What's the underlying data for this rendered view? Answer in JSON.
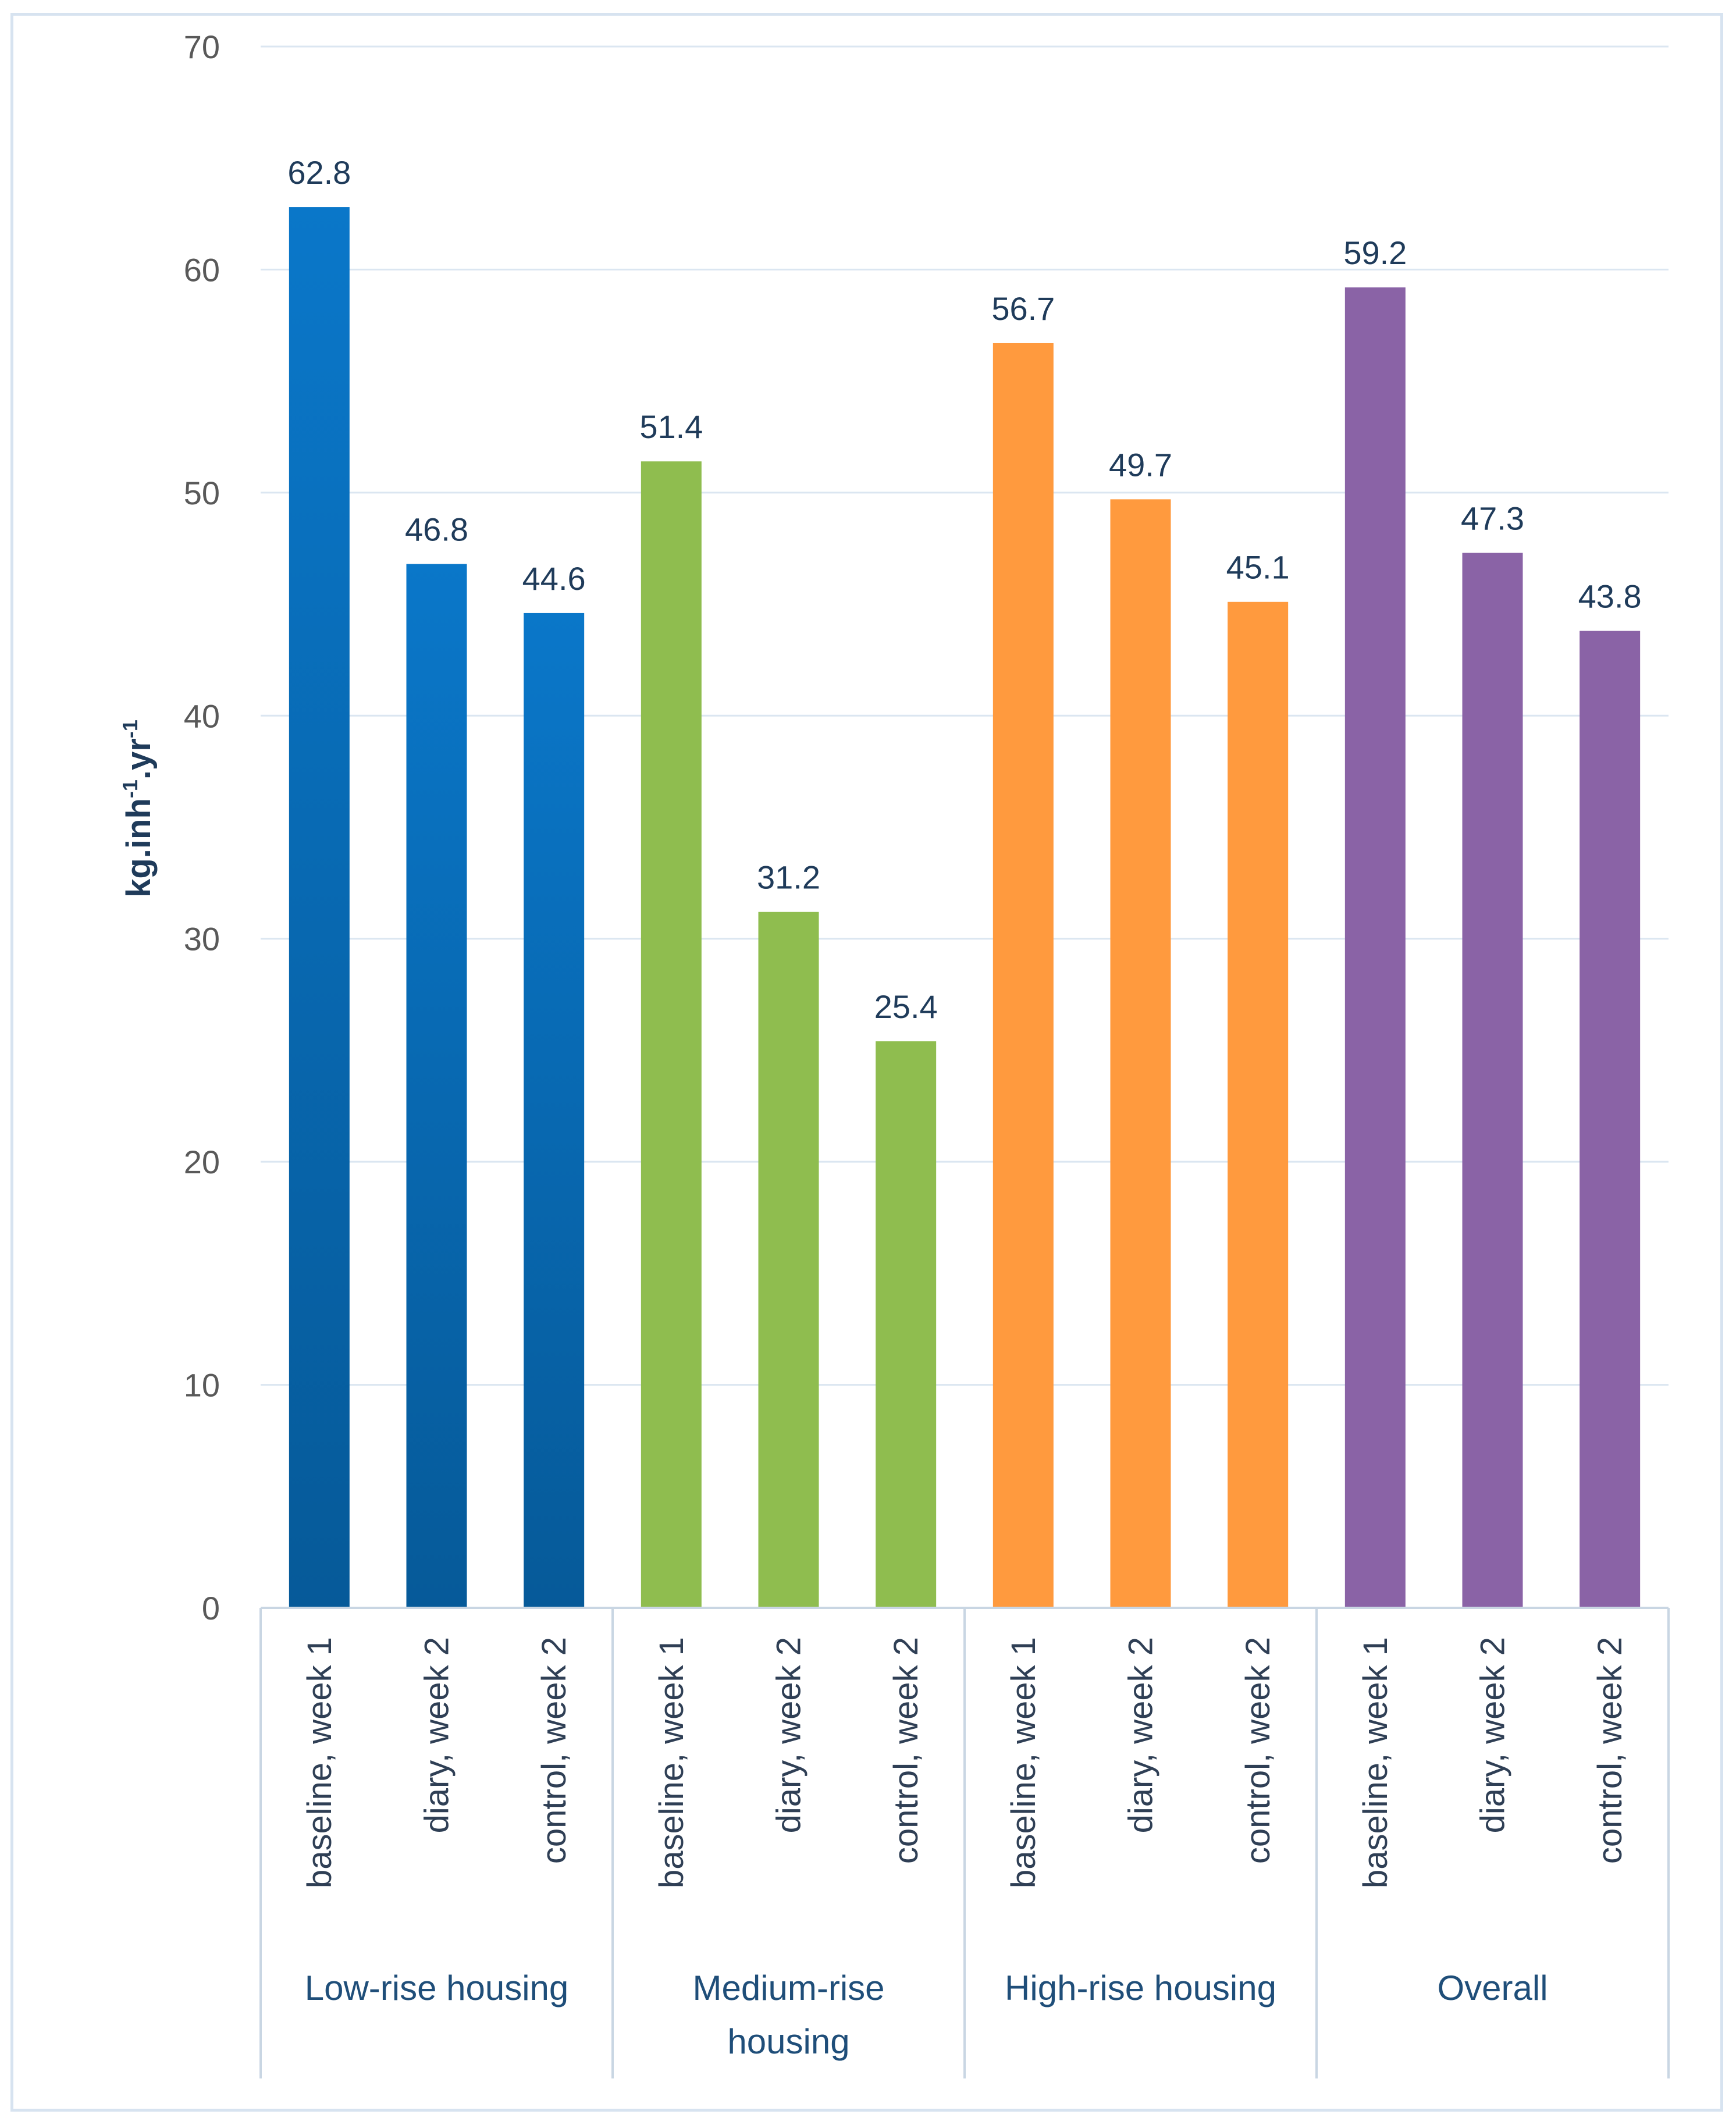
{
  "chart_data": {
    "type": "bar",
    "ylabel": "kg.inh",
    "ylabel_sup1": "-1",
    "ylabel_mid": ".yr",
    "ylabel_sup2": "-1",
    "ylim": [
      0,
      70
    ],
    "yticks": [
      "0",
      "10",
      "20",
      "30",
      "40",
      "50",
      "60",
      "70"
    ],
    "grid": true,
    "groups": [
      {
        "name": "Low-rise housing",
        "name_lines": [
          "Low-rise housing"
        ],
        "color": "#0a77c9",
        "color_dark": "#065a99",
        "gradient": true,
        "categories": [
          "baseline, week 1",
          "diary, week 2",
          "control, week 2"
        ],
        "values": [
          62.8,
          46.8,
          44.6
        ]
      },
      {
        "name": "Medium-rise housing",
        "name_lines": [
          "Medium-rise",
          "housing"
        ],
        "color": "#8fbd4f",
        "gradient": false,
        "categories": [
          "baseline, week 1",
          "diary, week 2",
          "control, week 2"
        ],
        "values": [
          51.4,
          31.2,
          25.4
        ]
      },
      {
        "name": "High-rise housing",
        "name_lines": [
          "High-rise housing"
        ],
        "color": "#ff9a3e",
        "gradient": false,
        "categories": [
          "baseline, week 1",
          "diary, week 2",
          "control, week 2"
        ],
        "values": [
          56.7,
          49.7,
          45.1
        ]
      },
      {
        "name": "Overall",
        "name_lines": [
          "Overall"
        ],
        "color": "#8a63a6",
        "gradient": false,
        "categories": [
          "baseline, week 1",
          "diary, week 2",
          "control, week 2"
        ],
        "values": [
          59.2,
          47.3,
          43.8
        ]
      }
    ]
  },
  "colors": {
    "grid": "#dbe6f1",
    "axis": "#c9d6e3"
  }
}
